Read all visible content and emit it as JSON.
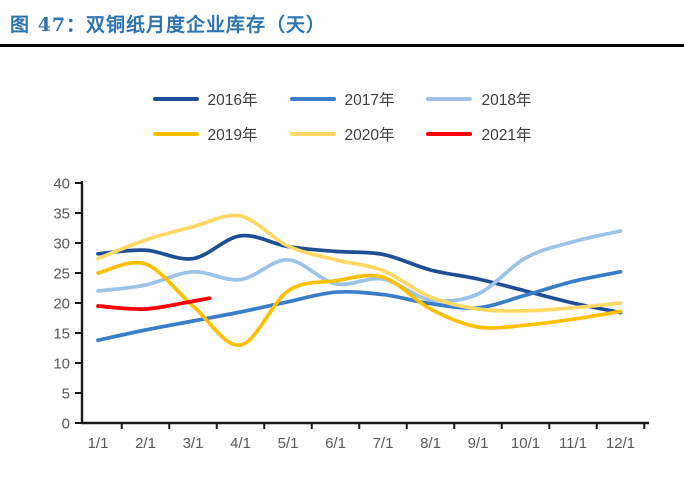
{
  "title": {
    "text": "图 47：双铜纸月度企业库存（天）"
  },
  "colors": {
    "title_blue": "#2E74B5",
    "axis_line": "#1a1a1a",
    "tick_label": "#595959",
    "title_rule": "#000000"
  },
  "chart_data": {
    "type": "line",
    "title": "双铜纸月度企业库存（天）",
    "xlabel": "",
    "ylabel": "",
    "x_labels": [
      "1/1",
      "2/1",
      "3/1",
      "4/1",
      "5/1",
      "6/1",
      "7/1",
      "8/1",
      "9/1",
      "10/1",
      "11/1",
      "12/1"
    ],
    "y_ticks": [
      0,
      5,
      10,
      15,
      20,
      25,
      30,
      35,
      40
    ],
    "ylim": [
      0,
      40
    ],
    "grid": false,
    "legend_position": "top-center, two rows",
    "series": [
      {
        "name": "2016年",
        "color": "#1F4E96",
        "x": [
          1,
          2,
          3,
          4,
          5,
          6,
          7,
          8,
          9,
          10,
          11,
          12
        ],
        "values": [
          28.2,
          28.8,
          27.4,
          31.2,
          29.4,
          28.6,
          28.1,
          25.5,
          24.0,
          22.0,
          20.0,
          18.4
        ]
      },
      {
        "name": "2017年",
        "color": "#3A7DC8",
        "x": [
          1,
          2,
          3,
          4,
          5,
          6,
          7,
          8,
          9,
          10,
          11,
          12
        ],
        "values": [
          13.8,
          15.5,
          17.0,
          18.5,
          20.2,
          21.8,
          21.4,
          19.9,
          19.2,
          21.3,
          23.6,
          25.2
        ]
      },
      {
        "name": "2018年",
        "color": "#9DC3E6",
        "x": [
          1,
          2,
          3,
          4,
          5,
          6,
          7,
          8,
          9,
          10,
          11,
          12
        ],
        "values": [
          22.0,
          23.0,
          25.2,
          23.9,
          27.2,
          23.2,
          24.0,
          20.5,
          21.5,
          27.5,
          30.2,
          32.0
        ]
      },
      {
        "name": "2019年",
        "color": "#FFC000",
        "x": [
          1,
          2,
          3,
          4,
          5,
          6,
          7,
          8,
          9,
          10,
          11,
          12
        ],
        "values": [
          25.0,
          26.5,
          19.5,
          13.0,
          22.0,
          23.7,
          24.3,
          19.0,
          16.0,
          16.3,
          17.3,
          18.6
        ]
      },
      {
        "name": "2020年",
        "color": "#FFD966",
        "x": [
          1,
          2,
          3,
          4,
          5,
          6,
          7,
          8,
          9,
          10,
          11,
          12
        ],
        "values": [
          27.4,
          30.5,
          32.7,
          34.5,
          29.5,
          27.2,
          25.4,
          21.0,
          19.0,
          18.7,
          19.2,
          20.0
        ]
      },
      {
        "name": "2021年",
        "color": "#FE0000",
        "x": [
          1,
          2,
          3,
          3.35
        ],
        "values": [
          19.5,
          19.0,
          20.3,
          20.8
        ]
      }
    ]
  }
}
